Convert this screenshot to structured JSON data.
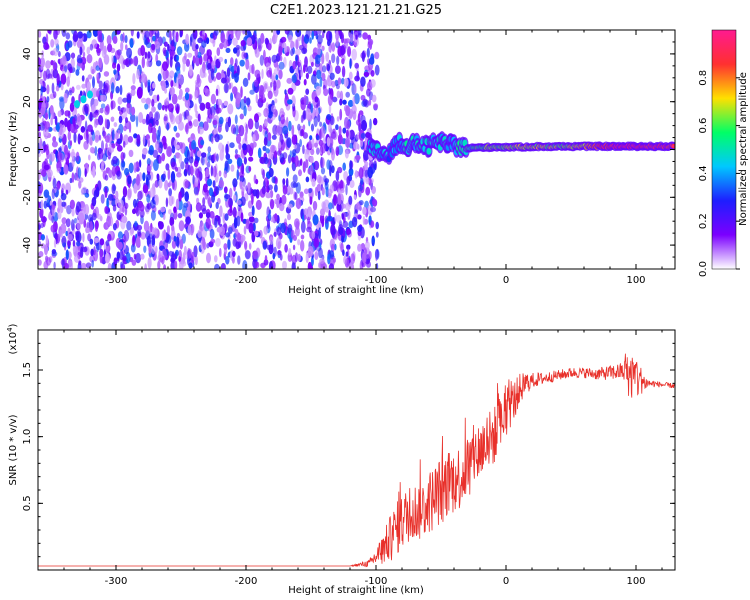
{
  "figure": {
    "title": "C2E1.2023.121.21.21.G25"
  },
  "chart_data": [
    {
      "type": "heatmap",
      "xlabel": "Height of straight line (km)",
      "ylabel": "Frequency (Hz)",
      "xlim": [
        -360,
        130
      ],
      "ylim": [
        -50,
        50
      ],
      "xticks": [
        -300,
        -200,
        -100,
        0,
        100
      ],
      "yticks": [
        -40,
        -20,
        0,
        20,
        40
      ],
      "noise_region_x": [
        -360,
        -102
      ],
      "signal_track": [
        {
          "x": -105,
          "y": 0.5,
          "amp": 0.45
        },
        {
          "x": -98,
          "y": -1.0,
          "amp": 0.5
        },
        {
          "x": -90,
          "y": -2.0,
          "amp": 0.45
        },
        {
          "x": -82,
          "y": 3.0,
          "amp": 0.5
        },
        {
          "x": -75,
          "y": 1.5,
          "amp": 0.55
        },
        {
          "x": -68,
          "y": 2.5,
          "amp": 0.5
        },
        {
          "x": -60,
          "y": 1.0,
          "amp": 0.55
        },
        {
          "x": -52,
          "y": 3.5,
          "amp": 0.55
        },
        {
          "x": -45,
          "y": 2.0,
          "amp": 0.5
        },
        {
          "x": -38,
          "y": 1.5,
          "amp": 0.55
        },
        {
          "x": -30,
          "y": 0.5,
          "amp": 0.6
        },
        {
          "x": -20,
          "y": 0.8,
          "amp": 0.65
        },
        {
          "x": -10,
          "y": 1.0,
          "amp": 0.7
        },
        {
          "x": 0,
          "y": 1.0,
          "amp": 0.72
        },
        {
          "x": 10,
          "y": 1.0,
          "amp": 0.72
        },
        {
          "x": 20,
          "y": 1.2,
          "amp": 0.75
        },
        {
          "x": 30,
          "y": 1.2,
          "amp": 0.72
        },
        {
          "x": 40,
          "y": 1.2,
          "amp": 0.72
        },
        {
          "x": 50,
          "y": 1.3,
          "amp": 0.75
        },
        {
          "x": 60,
          "y": 1.3,
          "amp": 0.8
        },
        {
          "x": 70,
          "y": 1.3,
          "amp": 0.9
        },
        {
          "x": 80,
          "y": 1.3,
          "amp": 0.95
        },
        {
          "x": 90,
          "y": 1.3,
          "amp": 1.0
        },
        {
          "x": 100,
          "y": 1.3,
          "amp": 1.0
        },
        {
          "x": 110,
          "y": 1.3,
          "amp": 0.95
        },
        {
          "x": 120,
          "y": 1.3,
          "amp": 0.95
        },
        {
          "x": 130,
          "y": 1.3,
          "amp": 0.95
        }
      ],
      "colorbar": {
        "label": "Normalized spectral amplitude",
        "range": [
          0,
          1
        ],
        "ticks": [
          0.0,
          0.2,
          0.4,
          0.6,
          0.8
        ],
        "tick_labels": [
          "0.0",
          "0.2",
          "0.4",
          "0.6",
          "0.8"
        ],
        "colors": [
          "#ffffff",
          "#7b00ff",
          "#1e1eff",
          "#00c8ff",
          "#00ff66",
          "#ffe000",
          "#ff3030",
          "#ff1a90"
        ]
      }
    },
    {
      "type": "line",
      "xlabel": "Height of straight line (km)",
      "ylabel": "SNR (10 * v/v)",
      "scale_note": "(x10",
      "scale_exp": "4",
      "xlim": [
        -360,
        130
      ],
      "ylim": [
        0,
        18000
      ],
      "xticks": [
        -300,
        -200,
        -100,
        0,
        100
      ],
      "yticks": [
        5000,
        10000,
        15000
      ],
      "ytick_labels": [
        "0.5",
        "1.0",
        "1.5"
      ],
      "color": "#e8302a",
      "x": [
        -360,
        -300,
        -200,
        -120,
        -105,
        -95,
        -85,
        -75,
        -65,
        -55,
        -45,
        -35,
        -25,
        -15,
        -5,
        0,
        5,
        10,
        15,
        20,
        30,
        40,
        50,
        60,
        70,
        80,
        90,
        95,
        100,
        105,
        110,
        120,
        130
      ],
      "y": [
        300,
        300,
        300,
        300,
        500,
        1500,
        3000,
        4200,
        4500,
        5500,
        6500,
        7000,
        8500,
        9500,
        10500,
        12000,
        12500,
        13500,
        14000,
        14200,
        14400,
        14600,
        14800,
        14800,
        14700,
        14800,
        14900,
        14600,
        14500,
        14100,
        14000,
        13900,
        13800
      ],
      "noise": [
        0,
        0,
        0,
        0,
        300,
        1200,
        2000,
        2200,
        2300,
        2500,
        2600,
        2500,
        2400,
        2300,
        2200,
        2000,
        1600,
        1200,
        900,
        600,
        450,
        400,
        400,
        400,
        450,
        550,
        700,
        1800,
        2000,
        800,
        300,
        200,
        200
      ]
    }
  ]
}
